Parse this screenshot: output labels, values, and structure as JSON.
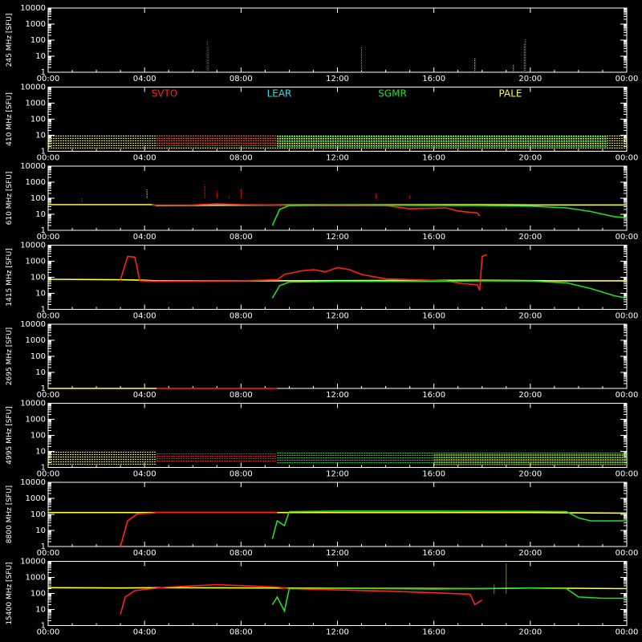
{
  "chart_data": [
    {
      "type": "line",
      "ylabel": "245 MHz [SFU]",
      "x_ticks": [
        "00:00",
        "04:00",
        "08:00",
        "12:00",
        "16:00",
        "20:00",
        "00:00"
      ],
      "y_ticks": [
        "1",
        "10",
        "100",
        "1000",
        "10000"
      ],
      "ylim": [
        1,
        10000
      ],
      "log_y": true,
      "series": [
        {
          "color": "#ff2020",
          "spikes": [
            [
              6.6,
              90
            ],
            [
              6.65,
              40
            ]
          ]
        },
        {
          "color": "#22dd22",
          "spikes": [
            [
              13.0,
              40
            ],
            [
              19.8,
              120
            ],
            [
              19.75,
              60
            ]
          ]
        },
        {
          "color": "#ffff33",
          "spikes": [
            [
              17.7,
              8
            ],
            [
              19.3,
              3
            ]
          ]
        }
      ]
    },
    {
      "type": "line",
      "ylabel": "410 MHz [SFU]",
      "x_ticks": [
        "00:00",
        "04:00",
        "08:00",
        "12:00",
        "16:00",
        "20:00",
        "00:00"
      ],
      "y_ticks": [
        "1",
        "10",
        "100",
        "1000",
        "10000"
      ],
      "ylim": [
        1,
        10000
      ],
      "log_y": true,
      "legend": [
        "SVTO",
        "LEAR",
        "SGMR",
        "PALE"
      ],
      "legend_colors": [
        "#ff2020",
        "#33dddd",
        "#22dd22",
        "#ffff33"
      ],
      "series": [
        {
          "color": "#ffff33",
          "band": [
            1.5,
            9
          ],
          "x": [
            0,
            24
          ]
        },
        {
          "color": "#ff2020",
          "band": [
            2,
            9
          ],
          "x": [
            4.5,
            9.5
          ]
        },
        {
          "color": "#22dd22",
          "band": [
            2,
            8
          ],
          "x": [
            9.5,
            23.2
          ]
        }
      ]
    },
    {
      "type": "line",
      "ylabel": "610 MHz [SFU]",
      "x_ticks": [
        "00:00",
        "04:00",
        "08:00",
        "12:00",
        "16:00",
        "20:00",
        "00:00"
      ],
      "y_ticks": [
        "1",
        "10",
        "100",
        "1000",
        "10000"
      ],
      "ylim": [
        1,
        10000
      ],
      "log_y": true,
      "series": [
        {
          "color": "#ffff33",
          "points": [
            [
              0,
              40
            ],
            [
              4,
              40
            ],
            [
              4.3,
              40
            ],
            [
              4.5,
              35
            ],
            [
              9.5,
              38
            ],
            [
              18,
              40
            ],
            [
              20,
              38
            ],
            [
              24,
              38
            ]
          ]
        },
        {
          "color": "#ff2020",
          "points": [
            [
              4.3,
              37
            ],
            [
              6,
              38
            ],
            [
              7,
              45
            ],
            [
              8,
              40
            ],
            [
              9.5,
              38
            ],
            [
              10,
              35
            ],
            [
              14,
              35
            ],
            [
              15,
              22
            ],
            [
              16.5,
              25
            ],
            [
              17,
              16
            ],
            [
              17.8,
              12
            ],
            [
              17.9,
              8
            ]
          ]
        },
        {
          "color": "#22dd22",
          "points": [
            [
              9.3,
              2
            ],
            [
              9.6,
              20
            ],
            [
              10,
              35
            ],
            [
              12,
              38
            ],
            [
              16,
              36
            ],
            [
              18,
              35
            ],
            [
              20,
              32
            ],
            [
              21.5,
              25
            ],
            [
              22.5,
              15
            ],
            [
              23.5,
              7
            ],
            [
              24,
              6
            ]
          ]
        }
      ],
      "spikes": [
        [
          1.4,
          50,
          "#ff2020"
        ],
        [
          4.1,
          350,
          "#ffff33"
        ],
        [
          6.5,
          700,
          "#ff2020"
        ],
        [
          7.0,
          300,
          "#ff2020"
        ],
        [
          7.5,
          150,
          "#ff2020"
        ],
        [
          8.0,
          400,
          "#ff2020"
        ],
        [
          13.6,
          200,
          "#ff2020"
        ],
        [
          15.0,
          150,
          "#ff2020"
        ]
      ]
    },
    {
      "type": "line",
      "ylabel": "1415 MHz [SFU]",
      "x_ticks": [
        "00:00",
        "04:00",
        "08:00",
        "12:00",
        "16:00",
        "20:00",
        "00:00"
      ],
      "y_ticks": [
        "1",
        "10",
        "100",
        "1000",
        "10000"
      ],
      "ylim": [
        1,
        10000
      ],
      "log_y": true,
      "series": [
        {
          "color": "#ffff33",
          "points": [
            [
              0,
              75
            ],
            [
              3,
              70
            ],
            [
              4,
              65
            ],
            [
              4.5,
              60
            ],
            [
              9.5,
              60
            ],
            [
              18,
              65
            ],
            [
              21,
              60
            ],
            [
              24,
              60
            ]
          ]
        },
        {
          "color": "#ff2020",
          "points": [
            [
              3.0,
              70
            ],
            [
              3.3,
              2000
            ],
            [
              3.6,
              1800
            ],
            [
              3.8,
              60
            ],
            [
              4.5,
              55
            ],
            [
              8,
              60
            ],
            [
              9.5,
              70
            ],
            [
              9.8,
              150
            ],
            [
              10.5,
              250
            ],
            [
              11,
              300
            ],
            [
              11.5,
              220
            ],
            [
              12,
              400
            ],
            [
              12.5,
              300
            ],
            [
              13,
              150
            ],
            [
              14,
              80
            ],
            [
              16.5,
              60
            ],
            [
              17.2,
              40
            ],
            [
              17.8,
              35
            ],
            [
              17.9,
              15
            ],
            [
              18.0,
              2000
            ],
            [
              18.2,
              2500
            ]
          ]
        },
        {
          "color": "#22dd22",
          "points": [
            [
              9.3,
              5
            ],
            [
              9.6,
              30
            ],
            [
              10,
              50
            ],
            [
              12,
              55
            ],
            [
              16,
              55
            ],
            [
              18,
              60
            ],
            [
              20,
              58
            ],
            [
              21.5,
              45
            ],
            [
              22.5,
              20
            ],
            [
              23.5,
              7
            ],
            [
              24,
              5
            ]
          ]
        }
      ]
    },
    {
      "type": "line",
      "ylabel": "2695 MHz [SFU]",
      "x_ticks": [
        "00:00",
        "04:00",
        "08:00",
        "12:00",
        "16:00",
        "20:00",
        "00:00"
      ],
      "y_ticks": [
        "1",
        "10",
        "100",
        "1000",
        "10000"
      ],
      "ylim": [
        1,
        10000
      ],
      "log_y": true,
      "series": [
        {
          "color": "#ffff33",
          "points": [
            [
              0,
              1
            ],
            [
              4.5,
              1
            ]
          ]
        },
        {
          "color": "#ff2020",
          "points": [
            [
              4.5,
              1
            ],
            [
              9.5,
              1
            ]
          ]
        }
      ]
    },
    {
      "type": "line",
      "ylabel": "4995 MHz [SFU]",
      "x_ticks": [
        "00:00",
        "04:00",
        "08:00",
        "12:00",
        "16:00",
        "20:00",
        "00:00"
      ],
      "y_ticks": [
        "1",
        "10",
        "100",
        "1000",
        "10000"
      ],
      "ylim": [
        1,
        10000
      ],
      "log_y": true,
      "series": [
        {
          "color": "#ffff33",
          "band": [
            1.5,
            9
          ],
          "x": [
            0,
            4.5
          ]
        },
        {
          "color": "#ff2020",
          "band": [
            2,
            7
          ],
          "x": [
            4.5,
            9.5
          ]
        },
        {
          "color": "#22dd22",
          "band": [
            2,
            8
          ],
          "x": [
            9.5,
            24
          ]
        },
        {
          "color": "#ffff33",
          "band": [
            1.5,
            6
          ],
          "x": [
            16,
            24
          ]
        }
      ]
    },
    {
      "type": "line",
      "ylabel": "8800 MHz [SFU]",
      "x_ticks": [
        "00:00",
        "04:00",
        "08:00",
        "12:00",
        "16:00",
        "20:00",
        "00:00"
      ],
      "y_ticks": [
        "1",
        "10",
        "100",
        "1000",
        "10000"
      ],
      "ylim": [
        1,
        10000
      ],
      "log_y": true,
      "series": [
        {
          "color": "#ffff33",
          "points": [
            [
              0,
              130
            ],
            [
              3,
              130
            ],
            [
              4.5,
              130
            ],
            [
              20,
              130
            ],
            [
              24,
              120
            ]
          ]
        },
        {
          "color": "#ff2020",
          "points": [
            [
              3.0,
              1
            ],
            [
              3.3,
              40
            ],
            [
              3.7,
              110
            ],
            [
              4.3,
              120
            ],
            [
              4.5,
              130
            ],
            [
              9.5,
              130
            ]
          ]
        },
        {
          "color": "#22dd22",
          "points": [
            [
              9.3,
              3
            ],
            [
              9.5,
              40
            ],
            [
              9.8,
              20
            ],
            [
              10,
              150
            ],
            [
              12,
              160
            ],
            [
              16,
              160
            ],
            [
              20,
              155
            ],
            [
              21.5,
              150
            ],
            [
              22,
              60
            ],
            [
              22.5,
              40
            ],
            [
              24,
              40
            ]
          ]
        }
      ]
    },
    {
      "type": "line",
      "ylabel": "15400 MHz [SFU]",
      "x_ticks": [
        "00:00",
        "04:00",
        "08:00",
        "12:00",
        "16:00",
        "20:00",
        "00:00"
      ],
      "y_ticks": [
        "1",
        "10",
        "100",
        "1000",
        "10000"
      ],
      "ylim": [
        1,
        10000
      ],
      "log_y": true,
      "series": [
        {
          "color": "#ffff33",
          "points": [
            [
              0,
              230
            ],
            [
              3,
              220
            ],
            [
              4.5,
              230
            ],
            [
              18,
              200
            ],
            [
              20,
              220
            ],
            [
              24,
              200
            ]
          ]
        },
        {
          "color": "#ff2020",
          "points": [
            [
              3.0,
              5
            ],
            [
              3.2,
              60
            ],
            [
              3.6,
              150
            ],
            [
              4.3,
              200
            ],
            [
              5,
              250
            ],
            [
              7,
              350
            ],
            [
              9.5,
              250
            ],
            [
              10,
              200
            ],
            [
              14,
              140
            ],
            [
              16,
              110
            ],
            [
              17.5,
              90
            ],
            [
              17.7,
              20
            ],
            [
              18,
              40
            ]
          ]
        },
        {
          "color": "#22dd22",
          "points": [
            [
              9.3,
              20
            ],
            [
              9.5,
              60
            ],
            [
              9.8,
              8
            ],
            [
              10,
              200
            ],
            [
              12,
              210
            ],
            [
              16,
              190
            ],
            [
              20,
              220
            ],
            [
              21.5,
              200
            ],
            [
              22,
              60
            ],
            [
              23,
              50
            ],
            [
              24,
              50
            ]
          ]
        }
      ],
      "spikes": [
        [
          19.0,
          8000,
          "#ffff33"
        ],
        [
          18.5,
          400,
          "#ffff33"
        ]
      ]
    }
  ]
}
